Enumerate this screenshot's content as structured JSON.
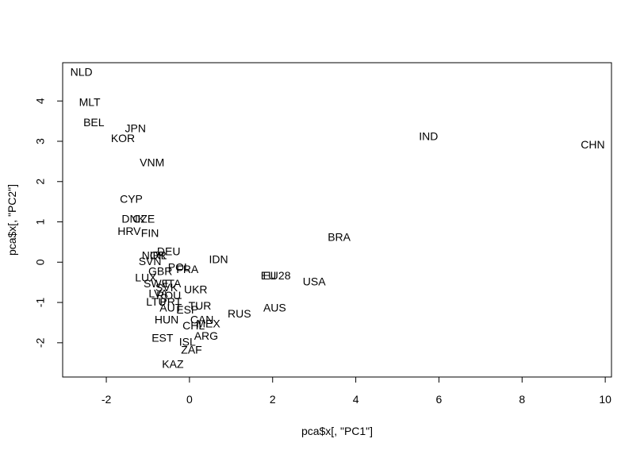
{
  "chart_data": {
    "type": "scatter",
    "title": "",
    "xlabel": "pca$x[, \"PC1\"]",
    "ylabel": "pca$x[, \"PC2\"]",
    "xlim": [
      -3.05,
      10.15
    ],
    "ylim": [
      -2.85,
      4.95
    ],
    "xticks": [
      "-2",
      "0",
      "2",
      "4",
      "6",
      "8",
      "10"
    ],
    "yticks": [
      "-2",
      "-1",
      "0",
      "1",
      "2",
      "3",
      "4"
    ],
    "grid": false,
    "legend": "none",
    "marker": "text-label",
    "points": [
      {
        "label": "NLD",
        "x": -2.6,
        "y": 4.7
      },
      {
        "label": "MLT",
        "x": -2.4,
        "y": 3.95
      },
      {
        "label": "BEL",
        "x": -2.3,
        "y": 3.45
      },
      {
        "label": "JPN",
        "x": -1.3,
        "y": 3.3
      },
      {
        "label": "KOR",
        "x": -1.6,
        "y": 3.05
      },
      {
        "label": "VNM",
        "x": -0.9,
        "y": 2.45
      },
      {
        "label": "IND",
        "x": 5.75,
        "y": 3.1
      },
      {
        "label": "CHN",
        "x": 9.7,
        "y": 2.9
      },
      {
        "label": "CYP",
        "x": -1.4,
        "y": 1.55
      },
      {
        "label": "DNK",
        "x": -1.35,
        "y": 1.05
      },
      {
        "label": "CZE",
        "x": -1.1,
        "y": 1.05
      },
      {
        "label": "HRV",
        "x": -1.45,
        "y": 0.75
      },
      {
        "label": "FIN",
        "x": -0.95,
        "y": 0.7
      },
      {
        "label": "BRA",
        "x": 3.6,
        "y": 0.6
      },
      {
        "label": "DEU",
        "x": -0.5,
        "y": 0.25
      },
      {
        "label": "NOR",
        "x": -0.85,
        "y": 0.15
      },
      {
        "label": "IRL",
        "x": -0.75,
        "y": 0.15
      },
      {
        "label": "IDN",
        "x": 0.7,
        "y": 0.05
      },
      {
        "label": "SVN",
        "x": -0.95,
        "y": 0.0
      },
      {
        "label": "POL",
        "x": -0.25,
        "y": -0.15
      },
      {
        "label": "FRA",
        "x": -0.05,
        "y": -0.2
      },
      {
        "label": "GBR",
        "x": -0.7,
        "y": -0.25
      },
      {
        "label": "EU",
        "x": 1.9,
        "y": -0.35
      },
      {
        "label": "EU28",
        "x": 2.1,
        "y": -0.35
      },
      {
        "label": "LUX",
        "x": -1.05,
        "y": -0.4
      },
      {
        "label": "USA",
        "x": 3.0,
        "y": -0.5
      },
      {
        "label": "SWE",
        "x": -0.8,
        "y": -0.55
      },
      {
        "label": "ITA",
        "x": -0.4,
        "y": -0.55
      },
      {
        "label": "SVK",
        "x": -0.55,
        "y": -0.65
      },
      {
        "label": "UKR",
        "x": 0.15,
        "y": -0.7
      },
      {
        "label": "LVA",
        "x": -0.75,
        "y": -0.8
      },
      {
        "label": "ROU",
        "x": -0.5,
        "y": -0.85
      },
      {
        "label": "LTU",
        "x": -0.8,
        "y": -1.0
      },
      {
        "label": "PRT",
        "x": -0.45,
        "y": -1.0
      },
      {
        "label": "TUR",
        "x": 0.25,
        "y": -1.1
      },
      {
        "label": "AUS",
        "x": 2.05,
        "y": -1.15
      },
      {
        "label": "AUT",
        "x": -0.45,
        "y": -1.15
      },
      {
        "label": "ESP",
        "x": -0.05,
        "y": -1.2
      },
      {
        "label": "RUS",
        "x": 1.2,
        "y": -1.3
      },
      {
        "label": "HUN",
        "x": -0.55,
        "y": -1.45
      },
      {
        "label": "CAN",
        "x": 0.3,
        "y": -1.45
      },
      {
        "label": "CHL",
        "x": 0.1,
        "y": -1.6
      },
      {
        "label": "MEX",
        "x": 0.45,
        "y": -1.55
      },
      {
        "label": "ARG",
        "x": 0.4,
        "y": -1.85
      },
      {
        "label": "EST",
        "x": -0.65,
        "y": -1.9
      },
      {
        "label": "ISL",
        "x": -0.05,
        "y": -2.0
      },
      {
        "label": "ZAF",
        "x": 0.05,
        "y": -2.2
      },
      {
        "label": "KAZ",
        "x": -0.4,
        "y": -2.55
      }
    ]
  }
}
